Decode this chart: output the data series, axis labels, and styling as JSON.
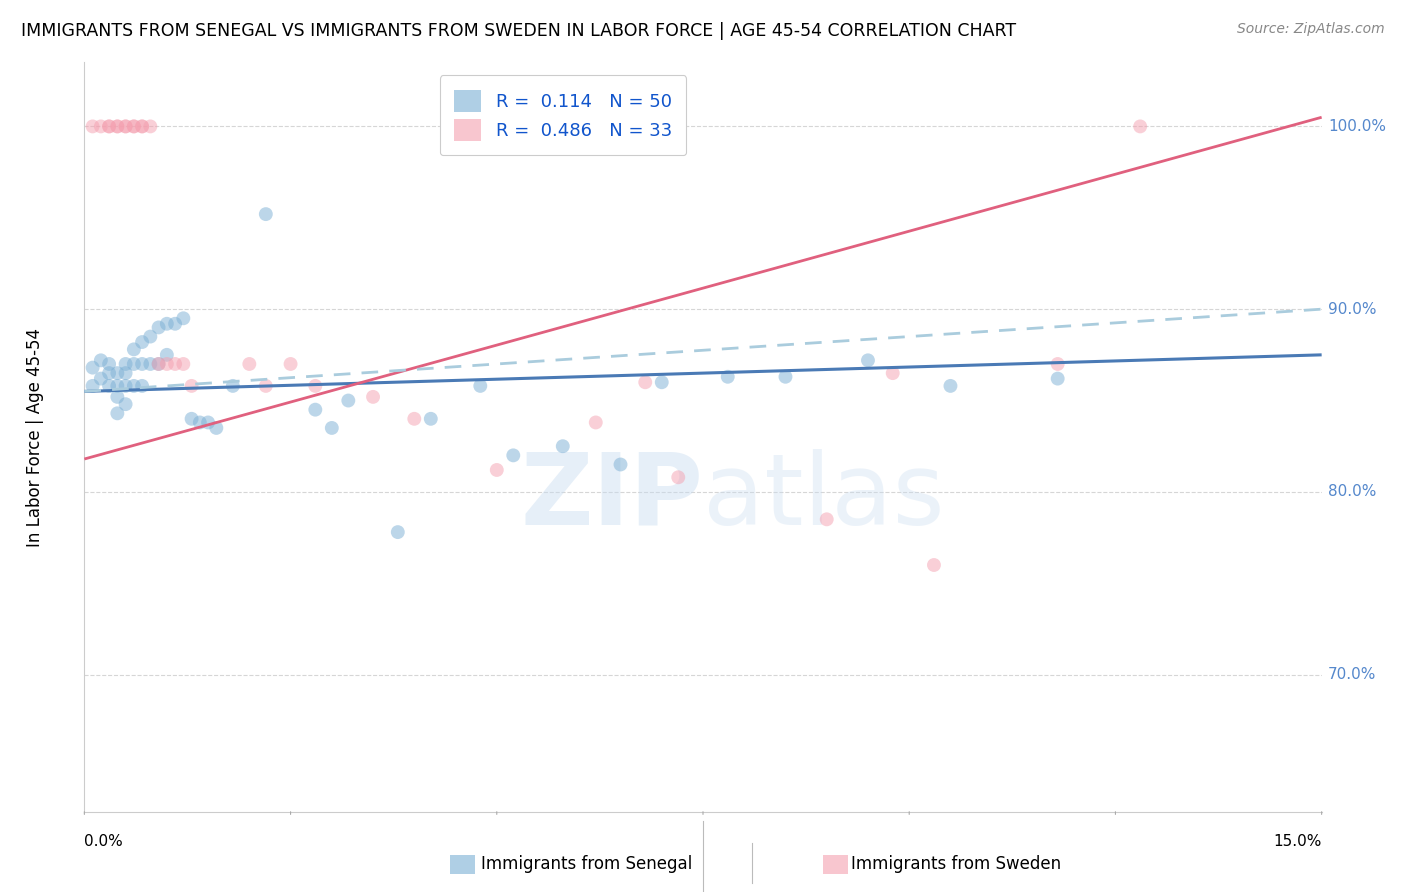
{
  "title": "IMMIGRANTS FROM SENEGAL VS IMMIGRANTS FROM SWEDEN IN LABOR FORCE | AGE 45-54 CORRELATION CHART",
  "source": "Source: ZipAtlas.com",
  "ylabel": "In Labor Force | Age 45-54",
  "legend_label1": "Immigrants from Senegal",
  "legend_label2": "Immigrants from Sweden",
  "blue_color": "#7BAFD4",
  "pink_color": "#F4A0B0",
  "blue_line_color": "#4A7AB5",
  "pink_line_color": "#E0607E",
  "dashed_line_color": "#AACCDD",
  "right_axis_color": "#5588CC",
  "background_color": "#FFFFFF",
  "grid_color": "#CCCCCC",
  "xlim": [
    0.0,
    0.15
  ],
  "ylim": [
    0.625,
    1.035
  ],
  "ytick_positions": [
    0.7,
    0.8,
    0.9,
    1.0
  ],
  "ytick_labels": [
    "70.0%",
    "80.0%",
    "90.0%",
    "100.0%"
  ],
  "blue_trend_x": [
    0.0,
    0.15
  ],
  "blue_trend_y": [
    0.855,
    0.875
  ],
  "pink_trend_x": [
    0.0,
    0.15
  ],
  "pink_trend_y": [
    0.818,
    1.005
  ],
  "dashed_trend_x": [
    0.0,
    0.15
  ],
  "dashed_trend_y": [
    0.855,
    0.9
  ],
  "blue_x": [
    0.001,
    0.001,
    0.002,
    0.002,
    0.003,
    0.003,
    0.003,
    0.004,
    0.004,
    0.004,
    0.004,
    0.005,
    0.005,
    0.005,
    0.005,
    0.006,
    0.006,
    0.006,
    0.007,
    0.007,
    0.007,
    0.008,
    0.008,
    0.009,
    0.009,
    0.01,
    0.01,
    0.011,
    0.012,
    0.013,
    0.014,
    0.015,
    0.016,
    0.018,
    0.022,
    0.028,
    0.03,
    0.032,
    0.038,
    0.042,
    0.048,
    0.052,
    0.058,
    0.065,
    0.07,
    0.078,
    0.085,
    0.095,
    0.105,
    0.118
  ],
  "blue_y": [
    0.868,
    0.858,
    0.872,
    0.862,
    0.87,
    0.865,
    0.858,
    0.865,
    0.858,
    0.852,
    0.843,
    0.87,
    0.865,
    0.858,
    0.848,
    0.878,
    0.87,
    0.858,
    0.882,
    0.87,
    0.858,
    0.885,
    0.87,
    0.89,
    0.87,
    0.892,
    0.875,
    0.892,
    0.895,
    0.84,
    0.838,
    0.838,
    0.835,
    0.858,
    0.952,
    0.845,
    0.835,
    0.85,
    0.778,
    0.84,
    0.858,
    0.82,
    0.825,
    0.815,
    0.86,
    0.863,
    0.863,
    0.872,
    0.858,
    0.862
  ],
  "pink_x": [
    0.001,
    0.002,
    0.003,
    0.003,
    0.004,
    0.004,
    0.005,
    0.005,
    0.006,
    0.006,
    0.007,
    0.007,
    0.008,
    0.009,
    0.01,
    0.011,
    0.012,
    0.013,
    0.02,
    0.022,
    0.025,
    0.028,
    0.035,
    0.04,
    0.05,
    0.062,
    0.068,
    0.072,
    0.09,
    0.098,
    0.103,
    0.118,
    0.128
  ],
  "pink_y": [
    1.0,
    1.0,
    1.0,
    1.0,
    1.0,
    1.0,
    1.0,
    1.0,
    1.0,
    1.0,
    1.0,
    1.0,
    1.0,
    0.87,
    0.87,
    0.87,
    0.87,
    0.858,
    0.87,
    0.858,
    0.87,
    0.858,
    0.852,
    0.84,
    0.812,
    0.838,
    0.86,
    0.808,
    0.785,
    0.865,
    0.76,
    0.87,
    1.0
  ]
}
